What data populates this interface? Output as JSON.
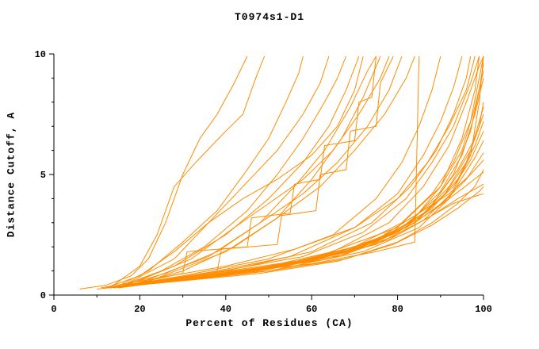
{
  "chart_data": {
    "type": "line",
    "title": "T0974s1-D1",
    "xlabel": "Percent of Residues (CA)",
    "ylabel": "Distance Cutoff, A",
    "xlim": [
      0,
      100
    ],
    "ylim": [
      0,
      10
    ],
    "xticks": [
      0,
      20,
      40,
      60,
      80,
      100
    ],
    "xminor": [
      10,
      30,
      50,
      70,
      90
    ],
    "yticks": [
      0,
      5,
      10
    ],
    "yminor": [
      1,
      2,
      3,
      4,
      6,
      7,
      8,
      9
    ],
    "grid": false,
    "legend": "none",
    "series_color": "#ff8c00",
    "axis_color": "#000000",
    "series": [
      [
        [
          6,
          0.25
        ],
        [
          12,
          0.4
        ],
        [
          18,
          0.8
        ],
        [
          22,
          1.5
        ],
        [
          26,
          3.0
        ],
        [
          30,
          5.0
        ],
        [
          34,
          6.5
        ],
        [
          38,
          7.5
        ],
        [
          42,
          8.8
        ],
        [
          45,
          9.9
        ]
      ],
      [
        [
          13,
          0.3
        ],
        [
          20,
          1.2
        ],
        [
          24,
          2.5
        ],
        [
          28,
          4.5
        ],
        [
          33,
          5.5
        ],
        [
          40,
          6.8
        ],
        [
          44,
          7.5
        ],
        [
          47,
          9.0
        ],
        [
          49,
          9.9
        ]
      ],
      [
        [
          14,
          0.3
        ],
        [
          22,
          1.0
        ],
        [
          30,
          2.2
        ],
        [
          38,
          3.5
        ],
        [
          45,
          5.2
        ],
        [
          50,
          6.5
        ],
        [
          54,
          8.0
        ],
        [
          57,
          9.2
        ],
        [
          58,
          9.9
        ]
      ],
      [
        [
          12,
          0.3
        ],
        [
          20,
          0.8
        ],
        [
          28,
          1.8
        ],
        [
          36,
          3.0
        ],
        [
          44,
          4.5
        ],
        [
          52,
          6.0
        ],
        [
          58,
          7.5
        ],
        [
          62,
          8.8
        ],
        [
          64,
          9.9
        ]
      ],
      [
        [
          15,
          0.35
        ],
        [
          25,
          1.0
        ],
        [
          35,
          2.0
        ],
        [
          45,
          3.5
        ],
        [
          52,
          5.0
        ],
        [
          58,
          6.5
        ],
        [
          63,
          8.0
        ],
        [
          66,
          9.0
        ],
        [
          68,
          9.9
        ]
      ],
      [
        [
          16,
          0.35
        ],
        [
          28,
          1.2
        ],
        [
          40,
          2.5
        ],
        [
          50,
          4.0
        ],
        [
          58,
          5.5
        ],
        [
          64,
          7.0
        ],
        [
          68,
          8.5
        ],
        [
          71,
          9.9
        ]
      ],
      [
        [
          14,
          0.3
        ],
        [
          26,
          0.9
        ],
        [
          38,
          1.8
        ],
        [
          48,
          3.0
        ],
        [
          56,
          4.5
        ],
        [
          63,
          6.0
        ],
        [
          69,
          7.8
        ],
        [
          73,
          9.3
        ],
        [
          75,
          9.9
        ]
      ],
      [
        [
          18,
          0.4
        ],
        [
          30,
          1.0
        ],
        [
          42,
          2.0
        ],
        [
          52,
          3.2
        ],
        [
          60,
          4.8
        ],
        [
          67,
          6.5
        ],
        [
          72,
          8.2
        ],
        [
          76,
          9.9
        ]
      ],
      [
        [
          15,
          0.3
        ],
        [
          40,
          0.9
        ],
        [
          60,
          1.3
        ],
        [
          75,
          1.8
        ],
        [
          84,
          2.2
        ],
        [
          85,
          9.9
        ]
      ],
      [
        [
          13,
          0.3
        ],
        [
          30,
          0.8
        ],
        [
          50,
          1.5
        ],
        [
          65,
          2.5
        ],
        [
          75,
          4.0
        ],
        [
          81,
          5.5
        ],
        [
          85,
          7.0
        ],
        [
          88,
          8.5
        ],
        [
          90,
          9.9
        ]
      ],
      [
        [
          14,
          0.3
        ],
        [
          35,
          0.9
        ],
        [
          55,
          1.6
        ],
        [
          70,
          2.8
        ],
        [
          80,
          4.2
        ],
        [
          86,
          5.8
        ],
        [
          90,
          7.2
        ],
        [
          93,
          8.6
        ],
        [
          95,
          9.9
        ]
      ],
      [
        [
          16,
          0.35
        ],
        [
          40,
          1.0
        ],
        [
          60,
          1.8
        ],
        [
          74,
          3.0
        ],
        [
          83,
          4.5
        ],
        [
          89,
          6.0
        ],
        [
          93,
          7.5
        ],
        [
          96,
          9.0
        ],
        [
          97,
          9.9
        ]
      ],
      [
        [
          12,
          0.3
        ],
        [
          36,
          0.9
        ],
        [
          58,
          1.6
        ],
        [
          72,
          2.6
        ],
        [
          82,
          4.0
        ],
        [
          88,
          5.5
        ],
        [
          93,
          7.0
        ],
        [
          97,
          8.8
        ],
        [
          99,
          9.9
        ]
      ],
      [
        [
          15,
          0.3
        ],
        [
          45,
          1.0
        ],
        [
          65,
          1.8
        ],
        [
          78,
          3.0
        ],
        [
          86,
          4.5
        ],
        [
          92,
          6.2
        ],
        [
          96,
          8.0
        ],
        [
          99,
          9.5
        ],
        [
          100,
          9.9
        ]
      ],
      [
        [
          14,
          0.3
        ],
        [
          40,
          0.9
        ],
        [
          62,
          1.5
        ],
        [
          76,
          2.4
        ],
        [
          85,
          3.4
        ],
        [
          92,
          4.2
        ],
        [
          97,
          5.0
        ],
        [
          100,
          5.6
        ]
      ],
      [
        [
          13,
          0.3
        ],
        [
          42,
          0.9
        ],
        [
          64,
          1.5
        ],
        [
          78,
          2.3
        ],
        [
          87,
          3.2
        ],
        [
          93,
          3.8
        ],
        [
          98,
          4.1
        ],
        [
          100,
          4.2
        ]
      ],
      [
        [
          15,
          0.35
        ],
        [
          50,
          1.1
        ],
        [
          70,
          1.9
        ],
        [
          82,
          2.8
        ],
        [
          89,
          3.6
        ],
        [
          95,
          4.4
        ],
        [
          100,
          5.1
        ]
      ],
      [
        [
          17,
          0.4
        ],
        [
          48,
          1.0
        ],
        [
          68,
          1.7
        ],
        [
          80,
          2.5
        ],
        [
          88,
          3.3
        ],
        [
          94,
          4.0
        ],
        [
          100,
          4.6
        ]
      ],
      [
        [
          12,
          0.3
        ],
        [
          38,
          0.8
        ],
        [
          60,
          1.4
        ],
        [
          75,
          2.2
        ],
        [
          84,
          3.0
        ],
        [
          91,
          3.9
        ],
        [
          96,
          4.8
        ],
        [
          100,
          5.9
        ]
      ],
      [
        [
          16,
          0.35
        ],
        [
          44,
          1.0
        ],
        [
          66,
          1.7
        ],
        [
          79,
          2.6
        ],
        [
          87,
          3.5
        ],
        [
          93,
          4.5
        ],
        [
          97,
          5.6
        ],
        [
          100,
          6.8
        ]
      ],
      [
        [
          14,
          0.3
        ],
        [
          46,
          1.0
        ],
        [
          68,
          1.8
        ],
        [
          81,
          2.8
        ],
        [
          89,
          4.0
        ],
        [
          94,
          5.2
        ],
        [
          98,
          6.5
        ],
        [
          100,
          7.5
        ]
      ],
      [
        [
          15,
          0.3
        ],
        [
          52,
          1.2
        ],
        [
          72,
          2.0
        ],
        [
          84,
          3.0
        ],
        [
          91,
          4.2
        ],
        [
          96,
          5.5
        ],
        [
          99,
          7.0
        ],
        [
          100,
          8.0
        ]
      ],
      [
        [
          18,
          0.4
        ],
        [
          55,
          1.3
        ],
        [
          74,
          2.2
        ],
        [
          85,
          3.2
        ],
        [
          92,
          4.5
        ],
        [
          97,
          6.0
        ],
        [
          100,
          7.8
        ]
      ],
      [
        [
          13,
          0.3
        ],
        [
          34,
          0.8
        ],
        [
          54,
          1.3
        ],
        [
          70,
          2.0
        ],
        [
          81,
          3.0
        ],
        [
          88,
          4.2
        ],
        [
          93,
          5.5
        ],
        [
          97,
          7.2
        ],
        [
          99,
          9.0
        ],
        [
          100,
          9.9
        ]
      ],
      [
        [
          20,
          0.5
        ],
        [
          50,
          1.1
        ],
        [
          70,
          1.9
        ],
        [
          83,
          3.0
        ],
        [
          90,
          4.5
        ],
        [
          95,
          6.0
        ],
        [
          98,
          7.8
        ],
        [
          100,
          9.3
        ]
      ],
      [
        [
          22,
          0.5
        ],
        [
          56,
          1.3
        ],
        [
          76,
          2.3
        ],
        [
          87,
          3.5
        ],
        [
          93,
          5.0
        ],
        [
          97,
          6.8
        ],
        [
          99,
          8.5
        ],
        [
          100,
          9.6
        ]
      ],
      [
        [
          25,
          0.6
        ],
        [
          60,
          1.5
        ],
        [
          80,
          2.8
        ],
        [
          90,
          4.5
        ],
        [
          95,
          6.5
        ],
        [
          98,
          8.5
        ],
        [
          99,
          9.9
        ]
      ],
      [
        [
          11,
          0.3
        ],
        [
          24,
          0.7
        ],
        [
          40,
          1.2
        ],
        [
          56,
          1.9
        ],
        [
          70,
          2.8
        ],
        [
          80,
          4.0
        ],
        [
          87,
          5.5
        ],
        [
          92,
          7.0
        ],
        [
          96,
          8.5
        ],
        [
          98,
          9.9
        ]
      ],
      [
        [
          15,
          0.3
        ],
        [
          28,
          1.5
        ],
        [
          36,
          3.0
        ],
        [
          44,
          4.0
        ],
        [
          52,
          4.8
        ],
        [
          60,
          5.8
        ],
        [
          66,
          7.0
        ],
        [
          70,
          8.5
        ],
        [
          72,
          9.9
        ]
      ],
      [
        [
          17,
          0.4
        ],
        [
          32,
          1.5
        ],
        [
          42,
          2.8
        ],
        [
          50,
          3.8
        ],
        [
          58,
          4.8
        ],
        [
          65,
          6.0
        ],
        [
          71,
          7.5
        ],
        [
          76,
          9.0
        ],
        [
          78,
          9.9
        ]
      ],
      [
        [
          19,
          0.45
        ],
        [
          36,
          1.6
        ],
        [
          48,
          3.0
        ],
        [
          58,
          4.2
        ],
        [
          66,
          5.5
        ],
        [
          73,
          7.0
        ],
        [
          78,
          8.5
        ],
        [
          81,
          9.9
        ]
      ],
      [
        [
          21,
          0.5
        ],
        [
          40,
          1.8
        ],
        [
          52,
          3.2
        ],
        [
          62,
          4.5
        ],
        [
          70,
          6.0
        ],
        [
          77,
          7.5
        ],
        [
          82,
          9.0
        ],
        [
          84,
          9.9
        ]
      ],
      [
        [
          10,
          0.25
        ],
        [
          30,
          0.6
        ],
        [
          50,
          1.0
        ],
        [
          68,
          1.5
        ],
        [
          80,
          2.2
        ],
        [
          88,
          3.0
        ],
        [
          94,
          3.8
        ],
        [
          98,
          4.5
        ],
        [
          100,
          5.2
        ]
      ],
      [
        [
          12,
          0.3
        ],
        [
          33,
          0.7
        ],
        [
          53,
          1.2
        ],
        [
          69,
          1.8
        ],
        [
          80,
          2.6
        ],
        [
          88,
          3.6
        ],
        [
          94,
          4.8
        ],
        [
          98,
          6.2
        ],
        [
          100,
          7.2
        ]
      ],
      [
        [
          18,
          0.4
        ],
        [
          50,
          1.0
        ],
        [
          72,
          1.8
        ],
        [
          85,
          2.8
        ],
        [
          92,
          4.0
        ],
        [
          97,
          5.8
        ],
        [
          99,
          8.0
        ],
        [
          100,
          9.9
        ]
      ],
      [
        [
          16,
          0.35
        ],
        [
          47,
          1.0
        ],
        [
          69,
          1.8
        ],
        [
          82,
          2.9
        ],
        [
          90,
          4.3
        ],
        [
          95,
          5.8
        ],
        [
          98,
          7.5
        ],
        [
          100,
          9.0
        ]
      ],
      [
        [
          14,
          0.3
        ],
        [
          30,
          0.9
        ],
        [
          31,
          1.8
        ],
        [
          45,
          2.0
        ],
        [
          46,
          3.2
        ],
        [
          55,
          3.4
        ],
        [
          56,
          4.6
        ],
        [
          62,
          4.8
        ],
        [
          63,
          6.2
        ],
        [
          70,
          6.4
        ],
        [
          71,
          8.0
        ],
        [
          74,
          8.2
        ],
        [
          75,
          9.9
        ]
      ],
      [
        [
          16,
          0.35
        ],
        [
          38,
          1.0
        ],
        [
          39,
          1.9
        ],
        [
          52,
          2.1
        ],
        [
          53,
          3.3
        ],
        [
          61,
          3.5
        ],
        [
          62,
          5.0
        ],
        [
          68,
          5.2
        ],
        [
          69,
          6.8
        ],
        [
          75,
          7.0
        ],
        [
          76,
          8.8
        ],
        [
          79,
          9.9
        ]
      ],
      [
        [
          13,
          0.3
        ],
        [
          48,
          0.9
        ],
        [
          66,
          1.4
        ],
        [
          79,
          2.1
        ],
        [
          88,
          2.9
        ],
        [
          94,
          3.6
        ],
        [
          99,
          4.3
        ],
        [
          100,
          4.5
        ]
      ],
      [
        [
          17,
          0.4
        ],
        [
          54,
          1.2
        ],
        [
          75,
          2.1
        ],
        [
          86,
          3.1
        ],
        [
          93,
          4.3
        ],
        [
          98,
          5.7
        ],
        [
          100,
          6.4
        ]
      ]
    ]
  }
}
